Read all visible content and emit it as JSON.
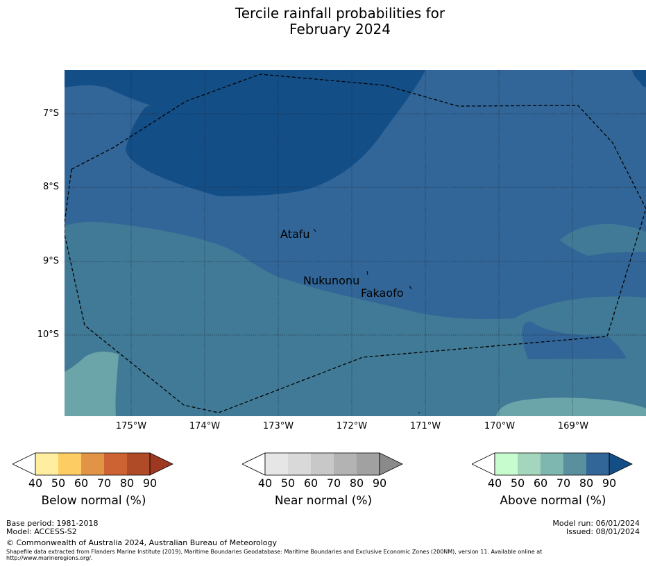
{
  "title": {
    "line1": "Tercile rainfall probabilities for",
    "line2": "February 2024"
  },
  "map": {
    "latitude_labels": [
      "7°S",
      "8°S",
      "9°S",
      "10°S"
    ],
    "longitude_labels": [
      "175°W",
      "174°W",
      "173°W",
      "172°W",
      "171°W",
      "170°W",
      "169°W"
    ],
    "places": [
      "Atafu",
      "Nukunonu",
      "Fakaofo"
    ],
    "colors": {
      "above_90": "#134e87",
      "above_80": "#326698",
      "above_70": "#417a96",
      "above_60": "#6ca5a9",
      "border": "#000000"
    }
  },
  "colorbars": [
    {
      "label": "Below normal (%)",
      "ticks": [
        "40",
        "50",
        "60",
        "70",
        "80",
        "90"
      ],
      "colors": [
        "#ffffff",
        "#ffeda0",
        "#fdcc63",
        "#e29446",
        "#cd6332",
        "#b04b27",
        "#9e3820"
      ]
    },
    {
      "label": "Near normal (%)",
      "ticks": [
        "40",
        "50",
        "60",
        "70",
        "80",
        "90"
      ],
      "colors": [
        "#ffffff",
        "#e6e6e6",
        "#d9d9d9",
        "#c8c8c8",
        "#b3b3b3",
        "#a1a1a1",
        "#8a8a8a"
      ]
    },
    {
      "label": "Above normal (%)",
      "ticks": [
        "40",
        "50",
        "60",
        "70",
        "80",
        "90"
      ],
      "colors": [
        "#ffffff",
        "#c7fcce",
        "#a3d6bd",
        "#7eb6b0",
        "#5a8f9e",
        "#326698",
        "#134e87"
      ]
    }
  ],
  "footer": {
    "base_period": "Base period: 1981-2018",
    "model": "Model: ACCESS-S2",
    "model_run": "Model run: 06/01/2024",
    "issued": "Issued: 08/01/2024",
    "copyright": "© Commonwealth of Australia 2024, Australian Bureau of Meteorology",
    "shapefile_line1": "Shapefile data extracted from Flanders Marine Institute (2019), Maritime Boundaries Geodatabase: Maritime Boundaries and Exclusive Economic Zones (200NM), version 11. Available online at",
    "shapefile_line2": "http://www.marineregions.org/."
  }
}
